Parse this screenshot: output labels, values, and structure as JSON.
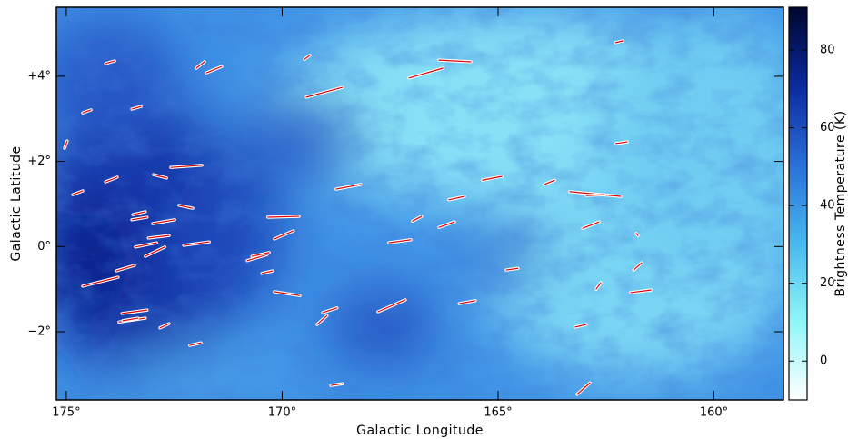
{
  "chart_data": {
    "type": "vectors",
    "xlabel": "Galactic Longitude",
    "ylabel": "Galactic Latitude",
    "xlim": [
      175.23,
      158.39
    ],
    "ylim": [
      -3.6,
      5.62
    ],
    "xticks": [
      {
        "value": 175,
        "label": "175°"
      },
      {
        "value": 170,
        "label": "170°"
      },
      {
        "value": 165,
        "label": "165°"
      },
      {
        "value": 160,
        "label": "160°"
      }
    ],
    "yticks": [
      {
        "value": 4,
        "label": "+4°"
      },
      {
        "value": 2,
        "label": "+2°"
      },
      {
        "value": 0,
        "label": "0°"
      },
      {
        "value": -2,
        "label": "−2°"
      }
    ],
    "colorbar": {
      "label": "Brightness Temperature (K)",
      "lim": [
        -10,
        91
      ],
      "ticks": [
        0,
        20,
        40,
        60,
        80
      ],
      "colors": [
        "#ffffff",
        "#8ff6f8",
        "#48b8ee",
        "#2a6fd8",
        "#0b2a9e",
        "#00062e"
      ]
    },
    "vector_color": "#e00000",
    "segments": [
      [
        174.09,
        4.3,
        173.88,
        4.36
      ],
      [
        171.99,
        4.19,
        171.8,
        4.34
      ],
      [
        171.76,
        4.08,
        171.4,
        4.23
      ],
      [
        169.48,
        4.4,
        169.36,
        4.49
      ],
      [
        167.06,
        3.96,
        166.28,
        4.19
      ],
      [
        166.37,
        4.38,
        165.63,
        4.34
      ],
      [
        162.28,
        4.79,
        162.11,
        4.83
      ],
      [
        169.44,
        3.51,
        168.6,
        3.74
      ],
      [
        174.62,
        3.14,
        174.43,
        3.21
      ],
      [
        173.48,
        3.23,
        173.27,
        3.29
      ],
      [
        175.04,
        2.31,
        174.98,
        2.48
      ],
      [
        162.28,
        2.42,
        162.01,
        2.46
      ],
      [
        174.85,
        1.22,
        174.62,
        1.31
      ],
      [
        174.09,
        1.52,
        173.82,
        1.63
      ],
      [
        172.98,
        1.69,
        172.68,
        1.61
      ],
      [
        172.58,
        1.86,
        171.86,
        1.91
      ],
      [
        168.75,
        1.35,
        168.18,
        1.46
      ],
      [
        165.36,
        1.56,
        164.91,
        1.65
      ],
      [
        163.93,
        1.46,
        163.69,
        1.56
      ],
      [
        163.34,
        1.29,
        162.16,
        1.18
      ],
      [
        162.96,
        1.2,
        162.54,
        1.22
      ],
      [
        166.14,
        1.1,
        165.78,
        1.18
      ],
      [
        172.39,
        0.97,
        172.07,
        0.9
      ],
      [
        173.46,
        0.75,
        173.17,
        0.82
      ],
      [
        173.48,
        0.63,
        173.13,
        0.69
      ],
      [
        173.0,
        0.54,
        172.49,
        0.63
      ],
      [
        170.33,
        0.69,
        169.61,
        0.71
      ],
      [
        166.98,
        0.6,
        166.77,
        0.71
      ],
      [
        166.37,
        0.45,
        166.01,
        0.58
      ],
      [
        163.04,
        0.43,
        162.66,
        0.58
      ],
      [
        161.8,
        0.31,
        161.76,
        0.26
      ],
      [
        173.1,
        0.2,
        172.62,
        0.26
      ],
      [
        173.4,
        -0.01,
        172.91,
        0.09
      ],
      [
        172.28,
        0.03,
        171.69,
        0.11
      ],
      [
        173.17,
        -0.23,
        172.72,
        -0.01
      ],
      [
        170.18,
        0.18,
        169.74,
        0.37
      ],
      [
        167.53,
        0.09,
        167.02,
        0.16
      ],
      [
        170.81,
        -0.33,
        170.35,
        -0.19
      ],
      [
        170.7,
        -0.23,
        170.3,
        -0.14
      ],
      [
        173.84,
        -0.57,
        173.42,
        -0.44
      ],
      [
        174.62,
        -0.93,
        173.8,
        -0.72
      ],
      [
        170.47,
        -0.63,
        170.22,
        -0.57
      ],
      [
        164.81,
        -0.55,
        164.54,
        -0.51
      ],
      [
        161.86,
        -0.55,
        161.67,
        -0.38
      ],
      [
        162.73,
        -1.0,
        162.62,
        -0.85
      ],
      [
        161.93,
        -1.08,
        161.46,
        -1.02
      ],
      [
        170.18,
        -1.06,
        169.59,
        -1.15
      ],
      [
        167.78,
        -1.53,
        167.15,
        -1.25
      ],
      [
        165.9,
        -1.34,
        165.53,
        -1.27
      ],
      [
        173.71,
        -1.57,
        173.13,
        -1.49
      ],
      [
        173.78,
        -1.77,
        173.17,
        -1.68
      ],
      [
        173.69,
        -1.74,
        173.34,
        -1.68
      ],
      [
        169.06,
        -1.55,
        168.73,
        -1.44
      ],
      [
        169.19,
        -1.83,
        168.96,
        -1.62
      ],
      [
        172.83,
        -1.91,
        172.62,
        -1.81
      ],
      [
        163.21,
        -1.89,
        162.96,
        -1.83
      ],
      [
        172.14,
        -2.32,
        171.88,
        -2.26
      ],
      [
        168.87,
        -3.26,
        168.6,
        -3.22
      ],
      [
        163.17,
        -3.47,
        162.87,
        -3.2
      ]
    ]
  }
}
